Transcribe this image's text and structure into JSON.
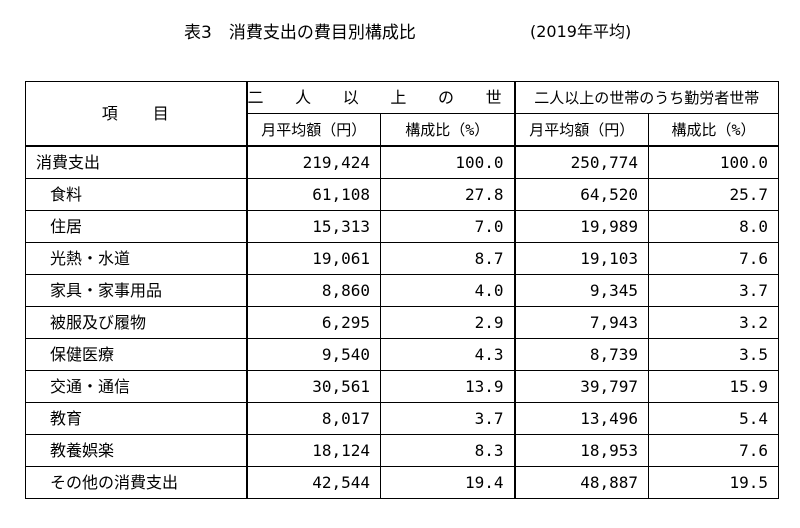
{
  "title": {
    "main": "表3　消費支出の費目別構成比",
    "year": "(2019年平均)"
  },
  "table": {
    "item_header": "項　　目",
    "group_headers": [
      "二 人 以 上 の 世 帯",
      "二人以上の世帯のうち勤労者世帯"
    ],
    "sub_headers": [
      "月平均額（円）",
      "構成比（%）",
      "月平均額（円）",
      "構成比（%）"
    ],
    "rows": [
      {
        "label": "消費支出",
        "v1": "219,424",
        "v2": "100.0",
        "v3": "250,774",
        "v4": "100.0"
      },
      {
        "label": "食料",
        "v1": "61,108",
        "v2": "27.8",
        "v3": "64,520",
        "v4": "25.7"
      },
      {
        "label": "住居",
        "v1": "15,313",
        "v2": "7.0",
        "v3": "19,989",
        "v4": "8.0"
      },
      {
        "label": "光熱・水道",
        "v1": "19,061",
        "v2": "8.7",
        "v3": "19,103",
        "v4": "7.6"
      },
      {
        "label": "家具・家事用品",
        "v1": "8,860",
        "v2": "4.0",
        "v3": "9,345",
        "v4": "3.7"
      },
      {
        "label": "被服及び履物",
        "v1": "6,295",
        "v2": "2.9",
        "v3": "7,943",
        "v4": "3.2"
      },
      {
        "label": "保健医療",
        "v1": "9,540",
        "v2": "4.3",
        "v3": "8,739",
        "v4": "3.5"
      },
      {
        "label": "交通・通信",
        "v1": "30,561",
        "v2": "13.9",
        "v3": "39,797",
        "v4": "15.9"
      },
      {
        "label": "教育",
        "v1": "8,017",
        "v2": "3.7",
        "v3": "13,496",
        "v4": "5.4"
      },
      {
        "label": "教養娯楽",
        "v1": "18,124",
        "v2": "8.3",
        "v3": "18,953",
        "v4": "7.6"
      },
      {
        "label": "その他の消費支出",
        "v1": "42,544",
        "v2": "19.4",
        "v3": "48,887",
        "v4": "19.5"
      }
    ]
  }
}
